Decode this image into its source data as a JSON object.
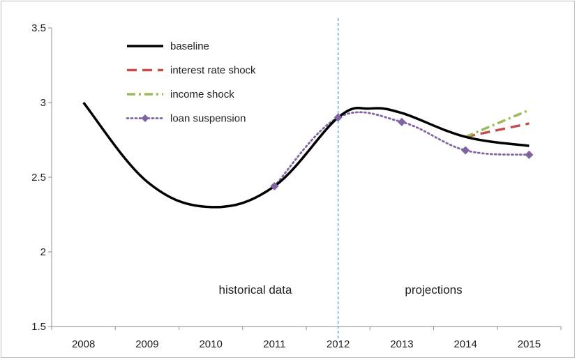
{
  "chart_data": {
    "type": "line",
    "x_categories": [
      "2008",
      "2009",
      "2010",
      "2011",
      "2012",
      "2013",
      "2014",
      "2015"
    ],
    "x_values": [
      2008,
      2009,
      2010,
      2011,
      2012,
      2013,
      2014,
      2015
    ],
    "ylim": [
      1.5,
      3.5
    ],
    "y_ticks": [
      1.5,
      2,
      2.5,
      3,
      3.5
    ],
    "y_tick_labels": [
      "1.5",
      "2",
      "2.5",
      "3",
      "3.5"
    ],
    "grid": false,
    "legend_position": "top-left",
    "divider": {
      "x": 2012,
      "style": "dashed",
      "color": "#5b9bd5"
    },
    "annotations": [
      {
        "text": "historical data",
        "x": 2010.7,
        "y": 1.72
      },
      {
        "text": "projections",
        "x": 2013.5,
        "y": 1.72
      }
    ],
    "series": [
      {
        "name": "baseline",
        "color": "#000000",
        "style": "solid",
        "points": [
          [
            2008,
            3.0
          ],
          [
            2009,
            2.47
          ],
          [
            2010,
            2.3
          ],
          [
            2011,
            2.44
          ],
          [
            2012,
            2.9
          ],
          [
            2012.5,
            2.96
          ],
          [
            2013,
            2.93
          ],
          [
            2014,
            2.77
          ],
          [
            2015,
            2.71
          ]
        ]
      },
      {
        "name": "interest rate shock",
        "color": "#c0504d",
        "style": "dashed",
        "points": [
          [
            2014,
            2.77
          ],
          [
            2015,
            2.86
          ]
        ]
      },
      {
        "name": "income shock",
        "color": "#9bbb59",
        "style": "dashdot",
        "points": [
          [
            2014,
            2.77
          ],
          [
            2015,
            2.95
          ]
        ]
      },
      {
        "name": "loan suspension",
        "color": "#8064a2",
        "style": "dotted",
        "marker": "diamond",
        "points": [
          [
            2011,
            2.44
          ],
          [
            2012,
            2.9
          ],
          [
            2013,
            2.87
          ],
          [
            2014,
            2.68
          ],
          [
            2015,
            2.65
          ]
        ]
      }
    ]
  }
}
